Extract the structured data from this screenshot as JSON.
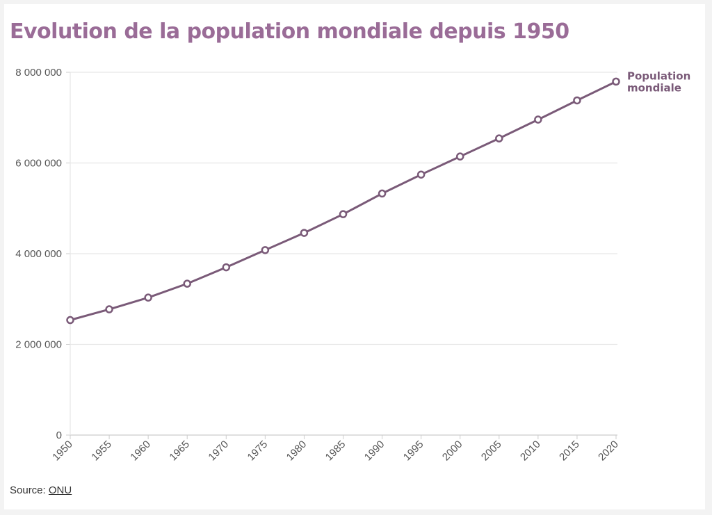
{
  "title": "Evolution de la population mondiale depuis 1950",
  "source": {
    "prefix": "Source:",
    "link_text": "ONU"
  },
  "colors": {
    "title": "#9a6c97",
    "line": "#7a5a78",
    "grid": "#e6e6e6",
    "axis": "#cccccc"
  },
  "chart_data": {
    "type": "line",
    "title": "Evolution de la population mondiale depuis 1950",
    "xlabel": "",
    "ylabel": "",
    "x": [
      1950,
      1955,
      1960,
      1965,
      1970,
      1975,
      1980,
      1985,
      1990,
      1995,
      2000,
      2005,
      2010,
      2015,
      2020
    ],
    "xticks": [
      "1950",
      "1955",
      "1960",
      "1965",
      "1970",
      "1975",
      "1980",
      "1985",
      "1990",
      "1995",
      "2000",
      "2005",
      "2010",
      "2015",
      "2020"
    ],
    "ylim": [
      0,
      8000000
    ],
    "yticks": [
      0,
      2000000,
      4000000,
      6000000,
      8000000
    ],
    "ytick_labels": [
      "0",
      "2 000 000",
      "4 000 000",
      "6 000 000",
      "8 000 000"
    ],
    "grid": true,
    "series": [
      {
        "name": "Population mondiale",
        "label_lines": [
          "Population",
          "mondiale"
        ],
        "color": "#7a5a78",
        "values": [
          2536000,
          2773000,
          3032000,
          3339000,
          3700000,
          4079000,
          4458000,
          4871000,
          5327000,
          5744000,
          6143000,
          6542000,
          6957000,
          7380000,
          7795000
        ]
      }
    ]
  }
}
